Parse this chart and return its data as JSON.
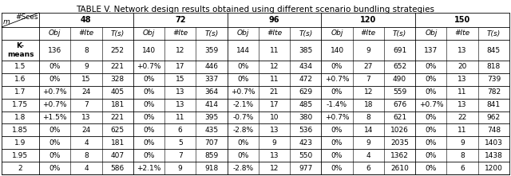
{
  "title": "TABLE V. Network design results obtained using different scenario bundling strategies",
  "group_labels": [
    "48",
    "72",
    "96",
    "120",
    "150"
  ],
  "sub_cols": [
    "Obj",
    "#Ite",
    "T(s)"
  ],
  "row_headers": [
    "K-\nmeans",
    "1.5",
    "1.6",
    "1.7",
    "1.75",
    "1.8",
    "1.85",
    "1.9",
    "1.95",
    "2"
  ],
  "data": [
    [
      "136",
      "8",
      "252",
      "140",
      "12",
      "359",
      "144",
      "11",
      "385",
      "140",
      "9",
      "691",
      "137",
      "13",
      "845"
    ],
    [
      "0%",
      "9",
      "221",
      "+0.7%",
      "17",
      "446",
      "0%",
      "12",
      "434",
      "0%",
      "27",
      "652",
      "0%",
      "20",
      "818"
    ],
    [
      "0%",
      "15",
      "328",
      "0%",
      "15",
      "337",
      "0%",
      "11",
      "472",
      "+0.7%",
      "7",
      "490",
      "0%",
      "13",
      "739"
    ],
    [
      "+0.7%",
      "24",
      "405",
      "0%",
      "13",
      "364",
      "+0.7%",
      "21",
      "629",
      "0%",
      "12",
      "559",
      "0%",
      "11",
      "782"
    ],
    [
      "+0.7%",
      "7",
      "181",
      "0%",
      "13",
      "414",
      "-2.1%",
      "17",
      "485",
      "-1.4%",
      "18",
      "676",
      "+0.7%",
      "13",
      "841"
    ],
    [
      "+1.5%",
      "13",
      "221",
      "0%",
      "11",
      "395",
      "-0.7%",
      "10",
      "380",
      "+0.7%",
      "8",
      "621",
      "0%",
      "22",
      "962"
    ],
    [
      "0%",
      "24",
      "625",
      "0%",
      "6",
      "435",
      "-2.8%",
      "13",
      "536",
      "0%",
      "14",
      "1026",
      "0%",
      "11",
      "748"
    ],
    [
      "0%",
      "4",
      "181",
      "0%",
      "5",
      "707",
      "0%",
      "9",
      "423",
      "0%",
      "9",
      "2035",
      "0%",
      "9",
      "1403"
    ],
    [
      "0%",
      "8",
      "407",
      "0%",
      "7",
      "859",
      "0%",
      "13",
      "550",
      "0%",
      "4",
      "1362",
      "0%",
      "8",
      "1438"
    ],
    [
      "0%",
      "4",
      "586",
      "+2.1%",
      "9",
      "918",
      "-2.8%",
      "12",
      "977",
      "0%",
      "6",
      "2610",
      "0%",
      "6",
      "1200"
    ]
  ],
  "font_size": 6.5,
  "title_font_size": 7.5,
  "lw": 0.6
}
